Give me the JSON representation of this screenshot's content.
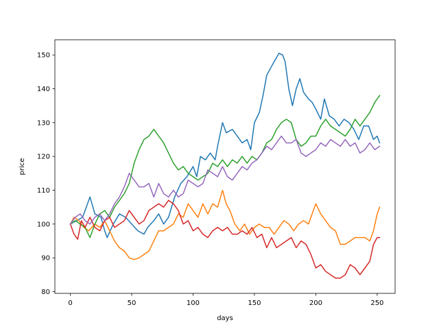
{
  "chart_data": {
    "type": "line",
    "title": "",
    "xlabel": "days",
    "ylabel": "price",
    "xlim": [
      -12.6,
      264.6
    ],
    "ylim": [
      79.5,
      154.5
    ],
    "xticks": [
      0,
      50,
      100,
      150,
      200,
      250
    ],
    "yticks": [
      80,
      90,
      100,
      110,
      120,
      130,
      140,
      150
    ],
    "grid": false,
    "legend": "none",
    "series": [
      {
        "color": "#1f77b4",
        "points": [
          [
            0,
            100
          ],
          [
            5,
            101
          ],
          [
            10,
            102
          ],
          [
            14,
            106
          ],
          [
            16,
            108
          ],
          [
            20,
            103
          ],
          [
            25,
            102
          ],
          [
            28,
            98
          ],
          [
            30,
            96
          ],
          [
            35,
            100
          ],
          [
            40,
            103
          ],
          [
            45,
            102
          ],
          [
            50,
            100
          ],
          [
            55,
            98
          ],
          [
            60,
            97
          ],
          [
            63,
            99
          ],
          [
            68,
            101
          ],
          [
            72,
            103
          ],
          [
            76,
            100
          ],
          [
            80,
            102
          ],
          [
            85,
            108
          ],
          [
            90,
            112
          ],
          [
            95,
            114
          ],
          [
            100,
            117
          ],
          [
            103,
            114
          ],
          [
            106,
            120
          ],
          [
            110,
            119
          ],
          [
            114,
            121
          ],
          [
            118,
            119
          ],
          [
            120,
            123
          ],
          [
            124,
            130
          ],
          [
            127,
            127
          ],
          [
            132,
            128
          ],
          [
            136,
            126
          ],
          [
            140,
            124
          ],
          [
            144,
            125
          ],
          [
            147,
            122
          ],
          [
            150,
            130
          ],
          [
            154,
            133
          ],
          [
            157,
            138
          ],
          [
            160,
            144
          ],
          [
            163,
            146
          ],
          [
            166,
            148
          ],
          [
            170,
            150.5
          ],
          [
            173,
            150
          ],
          [
            175,
            148
          ],
          [
            178,
            140
          ],
          [
            181,
            135
          ],
          [
            184,
            140
          ],
          [
            187,
            143
          ],
          [
            190,
            139
          ],
          [
            194,
            137
          ],
          [
            197,
            136
          ],
          [
            200,
            134
          ],
          [
            204,
            131
          ],
          [
            207,
            137
          ],
          [
            211,
            132
          ],
          [
            215,
            131
          ],
          [
            219,
            129
          ],
          [
            223,
            131
          ],
          [
            227,
            130
          ],
          [
            231,
            128
          ],
          [
            235,
            125
          ],
          [
            239,
            129
          ],
          [
            243,
            129
          ],
          [
            247,
            125
          ],
          [
            250,
            126
          ],
          [
            252,
            124
          ]
        ]
      },
      {
        "color": "#ff7f0e",
        "points": [
          [
            0,
            100
          ],
          [
            3,
            102
          ],
          [
            7,
            101
          ],
          [
            11,
            99
          ],
          [
            15,
            98
          ],
          [
            20,
            100
          ],
          [
            24,
            99
          ],
          [
            28,
            101
          ],
          [
            32,
            98
          ],
          [
            36,
            95
          ],
          [
            40,
            93
          ],
          [
            44,
            92
          ],
          [
            48,
            90
          ],
          [
            52,
            89.5
          ],
          [
            56,
            90
          ],
          [
            60,
            91
          ],
          [
            64,
            92
          ],
          [
            68,
            95
          ],
          [
            72,
            98
          ],
          [
            76,
            98
          ],
          [
            80,
            99
          ],
          [
            84,
            100
          ],
          [
            88,
            103
          ],
          [
            92,
            102
          ],
          [
            96,
            106
          ],
          [
            100,
            104
          ],
          [
            104,
            102
          ],
          [
            108,
            106
          ],
          [
            112,
            103
          ],
          [
            116,
            106
          ],
          [
            120,
            105
          ],
          [
            124,
            110
          ],
          [
            127,
            106
          ],
          [
            130,
            104
          ],
          [
            134,
            100
          ],
          [
            138,
            98
          ],
          [
            142,
            100
          ],
          [
            146,
            97
          ],
          [
            150,
            99
          ],
          [
            154,
            100
          ],
          [
            158,
            99
          ],
          [
            162,
            99
          ],
          [
            166,
            97
          ],
          [
            170,
            99
          ],
          [
            174,
            101
          ],
          [
            178,
            100
          ],
          [
            182,
            98
          ],
          [
            186,
            100
          ],
          [
            190,
            101
          ],
          [
            194,
            100
          ],
          [
            197,
            103
          ],
          [
            200,
            106
          ],
          [
            204,
            103
          ],
          [
            208,
            101
          ],
          [
            212,
            99
          ],
          [
            216,
            98
          ],
          [
            220,
            94
          ],
          [
            224,
            94
          ],
          [
            228,
            95
          ],
          [
            232,
            96
          ],
          [
            236,
            96
          ],
          [
            240,
            96
          ],
          [
            244,
            95
          ],
          [
            247,
            98
          ],
          [
            250,
            103
          ],
          [
            252,
            105
          ]
        ]
      },
      {
        "color": "#2ca02c",
        "points": [
          [
            0,
            100
          ],
          [
            4,
            101
          ],
          [
            8,
            100
          ],
          [
            12,
            99
          ],
          [
            16,
            96
          ],
          [
            20,
            100
          ],
          [
            24,
            103
          ],
          [
            28,
            104
          ],
          [
            32,
            102
          ],
          [
            36,
            105
          ],
          [
            40,
            107
          ],
          [
            44,
            109
          ],
          [
            48,
            112
          ],
          [
            52,
            118
          ],
          [
            56,
            122
          ],
          [
            60,
            125
          ],
          [
            64,
            126
          ],
          [
            68,
            128
          ],
          [
            72,
            126
          ],
          [
            76,
            124
          ],
          [
            80,
            121
          ],
          [
            84,
            118
          ],
          [
            88,
            116
          ],
          [
            92,
            117
          ],
          [
            96,
            115
          ],
          [
            100,
            114
          ],
          [
            104,
            113
          ],
          [
            108,
            114
          ],
          [
            112,
            115
          ],
          [
            116,
            118
          ],
          [
            120,
            117
          ],
          [
            124,
            119
          ],
          [
            128,
            117
          ],
          [
            132,
            119
          ],
          [
            136,
            118
          ],
          [
            140,
            120
          ],
          [
            144,
            118
          ],
          [
            148,
            120
          ],
          [
            152,
            119
          ],
          [
            156,
            121
          ],
          [
            160,
            124
          ],
          [
            164,
            125
          ],
          [
            168,
            128
          ],
          [
            172,
            130
          ],
          [
            176,
            131
          ],
          [
            180,
            130
          ],
          [
            184,
            125
          ],
          [
            188,
            123
          ],
          [
            192,
            124
          ],
          [
            196,
            126
          ],
          [
            200,
            126
          ],
          [
            204,
            129
          ],
          [
            208,
            131
          ],
          [
            212,
            129
          ],
          [
            216,
            128
          ],
          [
            220,
            127
          ],
          [
            224,
            126
          ],
          [
            228,
            128
          ],
          [
            232,
            131
          ],
          [
            236,
            129
          ],
          [
            240,
            131
          ],
          [
            244,
            133
          ],
          [
            248,
            136
          ],
          [
            252,
            138
          ]
        ]
      },
      {
        "color": "#d62728",
        "points": [
          [
            0,
            100
          ],
          [
            3,
            97
          ],
          [
            6,
            95.5
          ],
          [
            9,
            101
          ],
          [
            12,
            99
          ],
          [
            16,
            102
          ],
          [
            20,
            99
          ],
          [
            24,
            98
          ],
          [
            28,
            101
          ],
          [
            32,
            102
          ],
          [
            36,
            99
          ],
          [
            40,
            100
          ],
          [
            44,
            101
          ],
          [
            48,
            104
          ],
          [
            52,
            102
          ],
          [
            56,
            100
          ],
          [
            60,
            101
          ],
          [
            64,
            104
          ],
          [
            68,
            105
          ],
          [
            72,
            106
          ],
          [
            76,
            105
          ],
          [
            80,
            107
          ],
          [
            84,
            106
          ],
          [
            88,
            104
          ],
          [
            92,
            100
          ],
          [
            96,
            101
          ],
          [
            100,
            98
          ],
          [
            104,
            99
          ],
          [
            108,
            97
          ],
          [
            112,
            96
          ],
          [
            116,
            98
          ],
          [
            120,
            99
          ],
          [
            124,
            98
          ],
          [
            128,
            99
          ],
          [
            132,
            97
          ],
          [
            136,
            97
          ],
          [
            140,
            98
          ],
          [
            144,
            97
          ],
          [
            148,
            99
          ],
          [
            152,
            96
          ],
          [
            156,
            97
          ],
          [
            160,
            93
          ],
          [
            164,
            96
          ],
          [
            168,
            93
          ],
          [
            172,
            94
          ],
          [
            176,
            95
          ],
          [
            180,
            96
          ],
          [
            184,
            93
          ],
          [
            188,
            95
          ],
          [
            192,
            94
          ],
          [
            196,
            91
          ],
          [
            200,
            87
          ],
          [
            204,
            88
          ],
          [
            208,
            86
          ],
          [
            212,
            85
          ],
          [
            216,
            84
          ],
          [
            220,
            84
          ],
          [
            224,
            85
          ],
          [
            228,
            88
          ],
          [
            232,
            87
          ],
          [
            236,
            85
          ],
          [
            240,
            87
          ],
          [
            244,
            89
          ],
          [
            247,
            94
          ],
          [
            250,
            96
          ],
          [
            252,
            96
          ]
        ]
      },
      {
        "color": "#9467bd",
        "points": [
          [
            0,
            100
          ],
          [
            4,
            102
          ],
          [
            8,
            103
          ],
          [
            12,
            101
          ],
          [
            16,
            100
          ],
          [
            20,
            102
          ],
          [
            24,
            103
          ],
          [
            28,
            101
          ],
          [
            32,
            103
          ],
          [
            36,
            106
          ],
          [
            40,
            108
          ],
          [
            44,
            111
          ],
          [
            48,
            115
          ],
          [
            52,
            113
          ],
          [
            56,
            111
          ],
          [
            60,
            111
          ],
          [
            64,
            112
          ],
          [
            68,
            108
          ],
          [
            72,
            112
          ],
          [
            76,
            109
          ],
          [
            80,
            108
          ],
          [
            84,
            110
          ],
          [
            88,
            108
          ],
          [
            92,
            109
          ],
          [
            96,
            113
          ],
          [
            100,
            112
          ],
          [
            104,
            111
          ],
          [
            108,
            112
          ],
          [
            112,
            116
          ],
          [
            116,
            115
          ],
          [
            120,
            114
          ],
          [
            124,
            117
          ],
          [
            128,
            114
          ],
          [
            132,
            113
          ],
          [
            136,
            115
          ],
          [
            140,
            117
          ],
          [
            144,
            116
          ],
          [
            148,
            118
          ],
          [
            152,
            119
          ],
          [
            156,
            121
          ],
          [
            160,
            123
          ],
          [
            164,
            122
          ],
          [
            168,
            124
          ],
          [
            172,
            126
          ],
          [
            176,
            124
          ],
          [
            180,
            124
          ],
          [
            184,
            125
          ],
          [
            188,
            121
          ],
          [
            192,
            120
          ],
          [
            196,
            121
          ],
          [
            200,
            122
          ],
          [
            204,
            124
          ],
          [
            208,
            123
          ],
          [
            212,
            125
          ],
          [
            216,
            124
          ],
          [
            220,
            123
          ],
          [
            224,
            125
          ],
          [
            228,
            123
          ],
          [
            232,
            124
          ],
          [
            236,
            121
          ],
          [
            240,
            122
          ],
          [
            244,
            124
          ],
          [
            248,
            122
          ],
          [
            252,
            123
          ]
        ]
      }
    ]
  }
}
